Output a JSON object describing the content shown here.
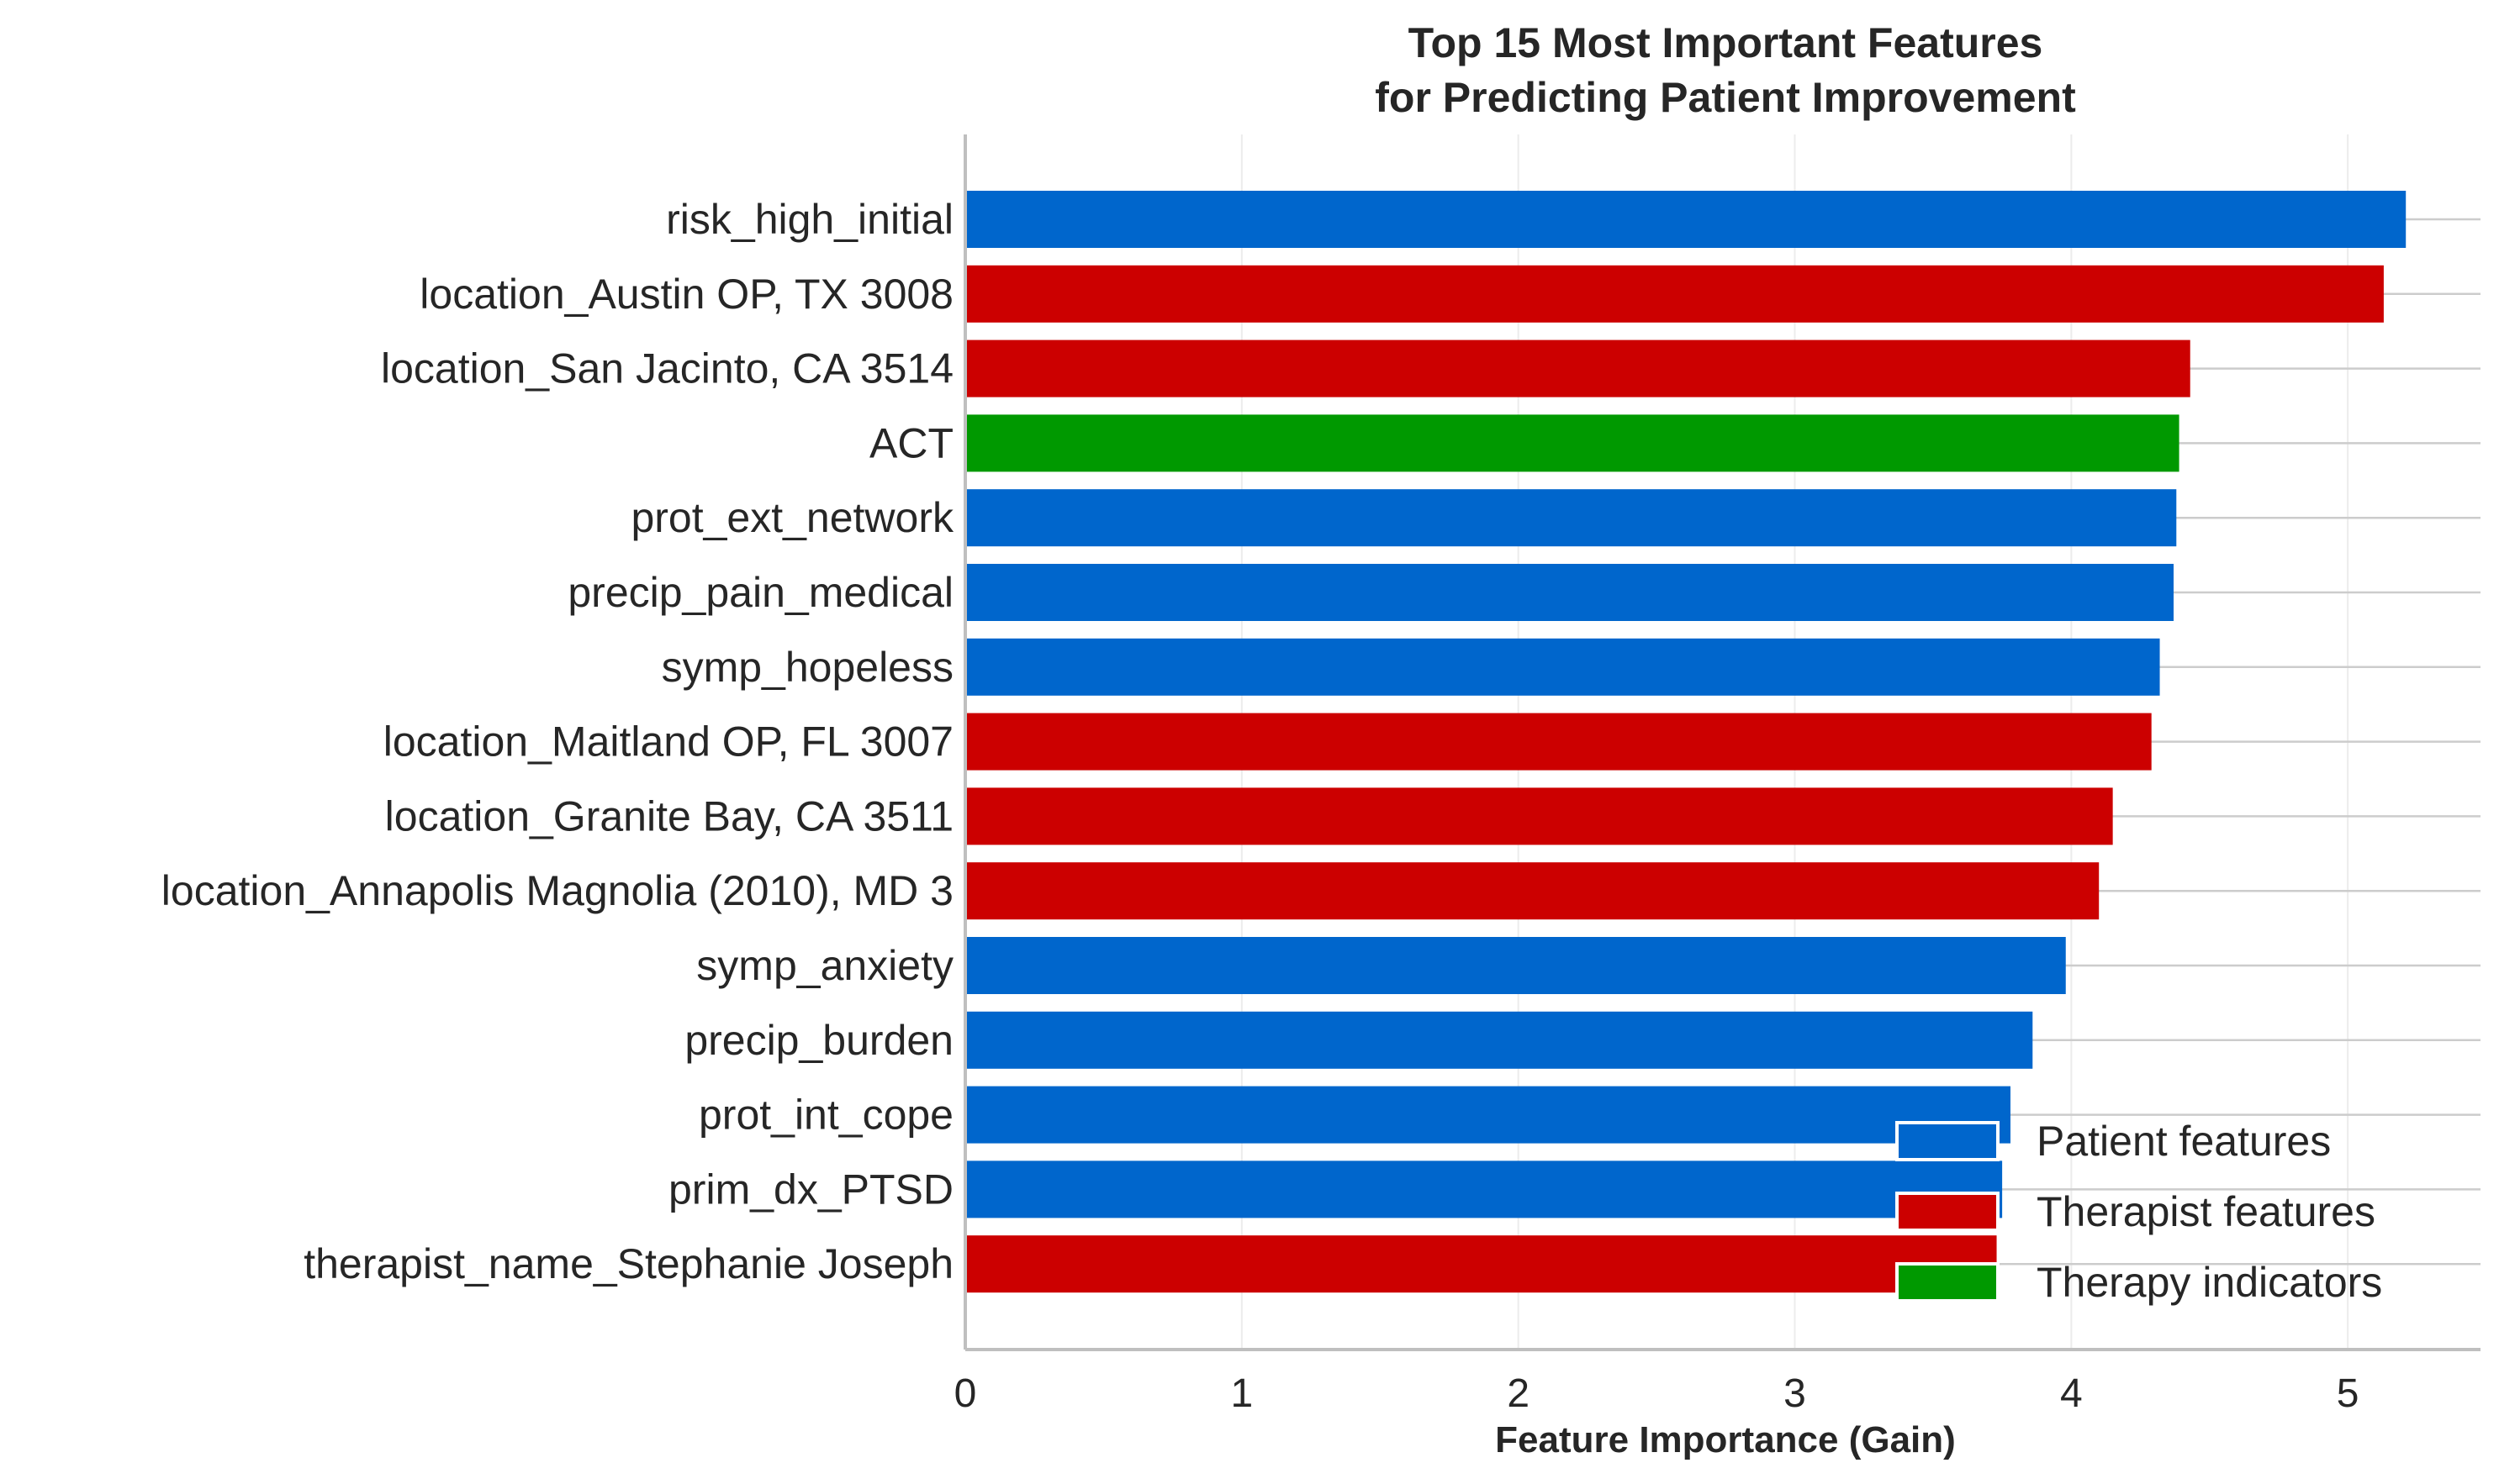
{
  "chart_data": {
    "type": "bar",
    "orientation": "horizontal",
    "title_lines": [
      "Top 15 Most Important Features",
      "for Predicting Patient Improvement"
    ],
    "xlabel": "Feature Importance (Gain)",
    "ylabel": "",
    "xlim": [
      0,
      5.48
    ],
    "xticks": [
      0,
      1,
      2,
      3,
      4,
      5
    ],
    "grid": "x-only, faint",
    "legend_position": "bottom-right",
    "categories": [
      "risk_high_initial",
      "location_Austin OP, TX 3008",
      "location_San Jacinto, CA 3514",
      "ACT",
      "prot_ext_network",
      "precip_pain_medical",
      "symp_hopeless",
      "location_Maitland OP, FL 3007",
      "location_Granite Bay, CA 3511",
      "location_Annapolis Magnolia (2010), MD 3",
      "symp_anxiety",
      "precip_burden",
      "prot_int_cope",
      "prim_dx_PTSD",
      "therapist_name_Stephanie Joseph"
    ],
    "values": [
      5.21,
      5.13,
      4.43,
      4.39,
      4.38,
      4.37,
      4.32,
      4.29,
      4.15,
      4.1,
      3.98,
      3.86,
      3.78,
      3.75,
      3.73
    ],
    "groups": [
      "patient",
      "therapist",
      "therapist",
      "therapy",
      "patient",
      "patient",
      "patient",
      "therapist",
      "therapist",
      "therapist",
      "patient",
      "patient",
      "patient",
      "patient",
      "therapist"
    ],
    "legend": [
      {
        "key": "patient",
        "label": "Patient features",
        "color": "#0066CC"
      },
      {
        "key": "therapist",
        "label": "Therapist features",
        "color": "#CC0000"
      },
      {
        "key": "therapy",
        "label": "Therapy indicators",
        "color": "#009900"
      }
    ]
  }
}
